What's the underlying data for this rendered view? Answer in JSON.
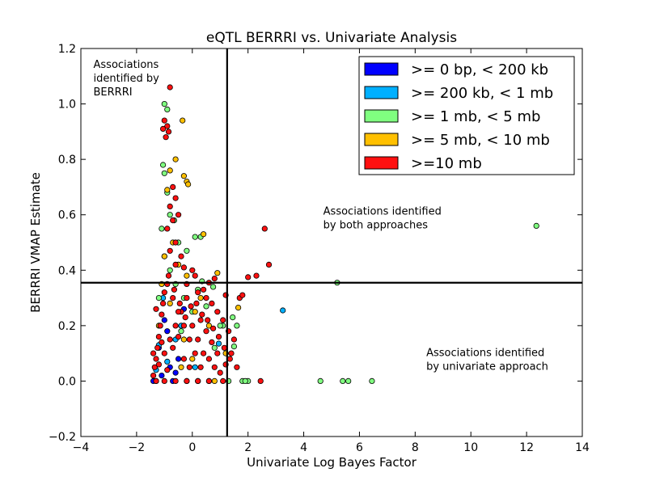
{
  "chart_data": {
    "type": "scatter",
    "title": "eQTL BERRRI vs. Univariate Analysis",
    "xlabel": "Univariate Log Bayes Factor",
    "ylabel": "BERRRI VMAP Estimate",
    "xlim": [
      -4,
      14
    ],
    "ylim": [
      -0.2,
      1.2
    ],
    "x_ticks": [
      -4,
      -2,
      0,
      2,
      4,
      6,
      8,
      10,
      12,
      14
    ],
    "y_ticks": [
      -0.2,
      0.0,
      0.2,
      0.4,
      0.6,
      0.8,
      1.0,
      1.2
    ],
    "x_tick_labels": [
      "−4",
      "−2",
      "0",
      "2",
      "4",
      "6",
      "8",
      "10",
      "12",
      "14"
    ],
    "y_tick_labels": [
      "−0.2",
      "0.0",
      "0.2",
      "0.4",
      "0.6",
      "0.8",
      "1.0",
      "1.2"
    ],
    "grid": false,
    "legend_position": "top-right",
    "thresholds": {
      "x": 1.25,
      "y": 0.355
    },
    "annotations": [
      {
        "lines": [
          "Associations",
          "identified by",
          "BERRRI"
        ],
        "x": -3.55,
        "y": 1.13
      },
      {
        "lines": [
          "Associations identified",
          "by both approaches"
        ],
        "x": 4.7,
        "y": 0.6
      },
      {
        "lines": [
          "Associations identified",
          "by univariate approach"
        ],
        "x": 8.4,
        "y": 0.09
      }
    ],
    "series": [
      {
        "name": ">= 0 bp, < 200 kb",
        "color": "#0000ff",
        "points": [
          [
            -1.3,
            0.0
          ],
          [
            -1.1,
            0.02
          ],
          [
            -0.8,
            0.05
          ],
          [
            -0.5,
            0.08
          ],
          [
            -1.2,
            0.12
          ],
          [
            -0.9,
            0.18
          ],
          [
            -0.3,
            0.26
          ],
          [
            -1.0,
            0.22
          ],
          [
            -0.6,
            0.03
          ],
          [
            0.2,
            0.0
          ],
          [
            -1.4,
            0.0
          ],
          [
            -0.7,
            0.0
          ]
        ]
      },
      {
        "name": ">= 200 kb, < 1 mb",
        "color": "#00b0ff",
        "points": [
          [
            3.25,
            0.255
          ],
          [
            0.95,
            0.135
          ],
          [
            -1.2,
            0.13
          ],
          [
            -0.4,
            0.2
          ],
          [
            -0.9,
            0.07
          ],
          [
            0.1,
            0.05
          ],
          [
            -1.05,
            0.3
          ],
          [
            -0.2,
            0.0
          ],
          [
            -1.3,
            0.04
          ],
          [
            -0.6,
            0.15
          ]
        ]
      },
      {
        "name": ">= 1 mb, < 5 mb",
        "color": "#80ff80",
        "points": [
          [
            12.35,
            0.56
          ],
          [
            5.2,
            0.355
          ],
          [
            4.6,
            0.0
          ],
          [
            5.4,
            0.0
          ],
          [
            5.6,
            0.0
          ],
          [
            6.45,
            0.0
          ],
          [
            1.5,
            0.125
          ],
          [
            1.1,
            0.2
          ],
          [
            1.8,
            0.0
          ],
          [
            2.0,
            0.0
          ],
          [
            0.3,
            0.52
          ],
          [
            0.1,
            0.52
          ],
          [
            -1.0,
            1.0
          ],
          [
            -0.9,
            0.98
          ],
          [
            -1.05,
            0.78
          ],
          [
            -1.0,
            0.75
          ],
          [
            -0.9,
            0.68
          ],
          [
            -0.8,
            0.6
          ],
          [
            -0.65,
            0.58
          ],
          [
            -0.5,
            0.5
          ],
          [
            -0.2,
            0.47
          ],
          [
            0.2,
            0.33
          ],
          [
            0.5,
            0.27
          ],
          [
            1.0,
            0.2
          ],
          [
            1.6,
            0.2
          ],
          [
            1.45,
            0.23
          ],
          [
            0.75,
            0.34
          ],
          [
            0.35,
            0.36
          ],
          [
            -1.1,
            0.55
          ],
          [
            -1.0,
            0.45
          ],
          [
            -0.8,
            0.4
          ],
          [
            -1.2,
            0.3
          ],
          [
            -0.6,
            0.35
          ],
          [
            -0.3,
            0.3
          ],
          [
            0.0,
            0.25
          ],
          [
            0.6,
            0.0
          ],
          [
            1.3,
            0.0
          ],
          [
            1.9,
            0.0
          ],
          [
            -0.4,
            0.18
          ],
          [
            0.8,
            0.12
          ]
        ]
      },
      {
        "name": ">= 5 mb, < 10 mb",
        "color": "#ffc000",
        "points": [
          [
            -0.35,
            0.94
          ],
          [
            -0.6,
            0.8
          ],
          [
            -0.8,
            0.76
          ],
          [
            -0.3,
            0.74
          ],
          [
            -0.2,
            0.72
          ],
          [
            -0.15,
            0.71
          ],
          [
            -0.9,
            0.69
          ],
          [
            0.4,
            0.53
          ],
          [
            -0.7,
            0.5
          ],
          [
            -1.0,
            0.45
          ],
          [
            -0.5,
            0.42
          ],
          [
            -0.2,
            0.38
          ],
          [
            0.9,
            0.39
          ],
          [
            1.65,
            0.265
          ],
          [
            -1.1,
            0.35
          ],
          [
            0.3,
            0.3
          ],
          [
            0.1,
            0.25
          ],
          [
            -0.3,
            0.15
          ],
          [
            0.6,
            0.2
          ],
          [
            -0.8,
            0.28
          ],
          [
            1.2,
            0.1
          ],
          [
            0.0,
            0.08
          ],
          [
            -1.2,
            0.2
          ],
          [
            -0.4,
            0.05
          ],
          [
            0.8,
            0.0
          ]
        ]
      },
      {
        "name": ">=10 mb",
        "color": "#ff1010",
        "points": [
          [
            -0.8,
            1.06
          ],
          [
            -1.0,
            0.94
          ],
          [
            -0.9,
            0.92
          ],
          [
            -1.05,
            0.91
          ],
          [
            -0.85,
            0.9
          ],
          [
            -0.95,
            0.88
          ],
          [
            -0.7,
            0.7
          ],
          [
            -0.6,
            0.66
          ],
          [
            -0.8,
            0.63
          ],
          [
            -0.5,
            0.6
          ],
          [
            -0.7,
            0.58
          ],
          [
            -0.9,
            0.55
          ],
          [
            -0.6,
            0.5
          ],
          [
            -0.8,
            0.47
          ],
          [
            -0.4,
            0.45
          ],
          [
            -0.6,
            0.42
          ],
          [
            -0.3,
            0.41
          ],
          [
            2.6,
            0.55
          ],
          [
            2.75,
            0.42
          ],
          [
            2.0,
            0.375
          ],
          [
            2.3,
            0.38
          ],
          [
            1.7,
            0.3
          ],
          [
            1.8,
            0.31
          ],
          [
            1.2,
            0.31
          ],
          [
            0.8,
            0.37
          ],
          [
            0.6,
            0.355
          ],
          [
            0.4,
            0.33
          ],
          [
            0.0,
            0.4
          ],
          [
            0.1,
            0.38
          ],
          [
            -0.2,
            0.35
          ],
          [
            0.2,
            0.32
          ],
          [
            0.5,
            0.3
          ],
          [
            0.7,
            0.28
          ],
          [
            0.9,
            0.25
          ],
          [
            1.1,
            0.22
          ],
          [
            1.3,
            0.18
          ],
          [
            1.5,
            0.15
          ],
          [
            1.4,
            0.1
          ],
          [
            1.6,
            0.05
          ],
          [
            2.45,
            0.0
          ],
          [
            1.1,
            0.0
          ],
          [
            0.6,
            0.0
          ],
          [
            0.2,
            0.0
          ],
          [
            -0.2,
            0.0
          ],
          [
            -0.6,
            0.0
          ],
          [
            -1.0,
            0.0
          ],
          [
            -1.3,
            0.0
          ],
          [
            -1.4,
            0.02
          ],
          [
            -1.35,
            0.05
          ],
          [
            -1.3,
            0.08
          ],
          [
            -1.25,
            0.12
          ],
          [
            -1.2,
            0.16
          ],
          [
            -1.15,
            0.2
          ],
          [
            -1.1,
            0.24
          ],
          [
            -1.05,
            0.28
          ],
          [
            -1.0,
            0.32
          ],
          [
            -1.4,
            0.1
          ],
          [
            -1.2,
            0.06
          ],
          [
            -1.0,
            0.1
          ],
          [
            -0.8,
            0.15
          ],
          [
            -0.6,
            0.2
          ],
          [
            -0.4,
            0.25
          ],
          [
            -0.2,
            0.3
          ],
          [
            0.0,
            0.2
          ],
          [
            0.2,
            0.15
          ],
          [
            0.4,
            0.1
          ],
          [
            0.6,
            0.08
          ],
          [
            0.8,
            0.05
          ],
          [
            1.0,
            0.03
          ],
          [
            -0.9,
            0.35
          ],
          [
            -0.7,
            0.3
          ],
          [
            -0.5,
            0.25
          ],
          [
            -0.3,
            0.2
          ],
          [
            -0.1,
            0.15
          ],
          [
            0.1,
            0.1
          ],
          [
            0.3,
            0.05
          ],
          [
            -1.3,
            0.26
          ],
          [
            -1.1,
            0.14
          ],
          [
            -0.9,
            0.04
          ],
          [
            -0.7,
            0.12
          ],
          [
            -0.5,
            0.16
          ],
          [
            -0.3,
            0.08
          ],
          [
            -0.1,
            0.05
          ],
          [
            0.3,
            0.22
          ],
          [
            0.5,
            0.18
          ],
          [
            0.7,
            0.14
          ],
          [
            0.9,
            0.1
          ],
          [
            1.2,
            0.06
          ],
          [
            -0.85,
            0.38
          ],
          [
            -0.65,
            0.33
          ],
          [
            -0.45,
            0.28
          ],
          [
            -0.25,
            0.23
          ],
          [
            -0.05,
            0.27
          ],
          [
            0.15,
            0.28
          ],
          [
            0.35,
            0.24
          ],
          [
            0.55,
            0.22
          ],
          [
            0.75,
            0.19
          ],
          [
            0.95,
            0.16
          ],
          [
            1.15,
            0.12
          ],
          [
            1.35,
            0.08
          ]
        ]
      }
    ]
  }
}
